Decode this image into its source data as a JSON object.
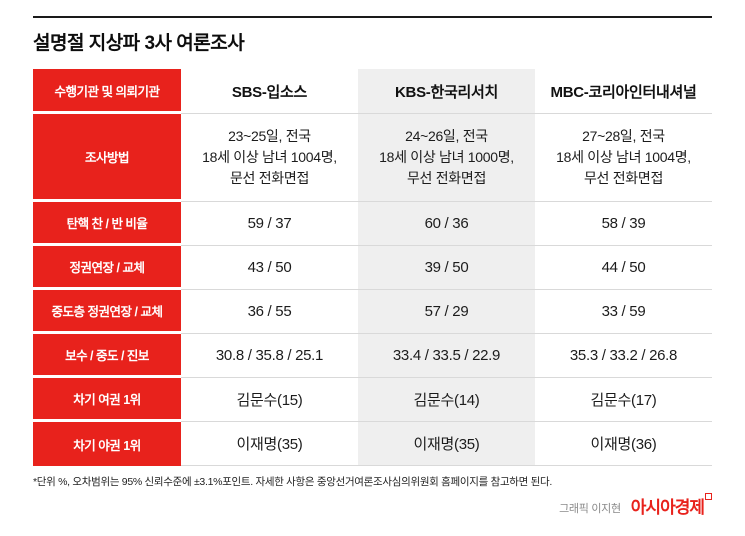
{
  "title": "설명절 지상파 3사 여론조사",
  "chart_data": {
    "type": "table",
    "corner_label": "수행기관 및 의뢰기관",
    "columns": [
      "SBS-입소스",
      "KBS-한국리서치",
      "MBC-코리아인터내셔널"
    ],
    "rows": [
      {
        "label": "조사방법",
        "values": [
          "23~25일, 전국\n18세 이상 남녀 1004명,\n문선 전화면접",
          "24~26일, 전국\n18세 이상 남녀 1000명,\n무선 전화면접",
          "27~28일, 전국\n18세 이상 남녀 1004명,\n무선 전화면접"
        ]
      },
      {
        "label": "탄핵 찬 / 반 비율",
        "values": [
          "59  /  37",
          "60  /  36",
          "58  /  39"
        ]
      },
      {
        "label": "정권연장 / 교체",
        "values": [
          "43  /  50",
          "39  /  50",
          "44  /  50"
        ]
      },
      {
        "label": "중도층 정권연장 / 교체",
        "values": [
          "36  /  55",
          "57  /  29",
          "33  /  59"
        ]
      },
      {
        "label": "보수 / 중도 / 진보",
        "values": [
          "30.8  /  35.8  /  25.1",
          "33.4  /  33.5  /  22.9",
          "35.3  /  33.2  /  26.8"
        ]
      },
      {
        "label": "차기 여권 1위",
        "values": [
          "김문수(15)",
          "김문수(14)",
          "김문수(17)"
        ]
      },
      {
        "label": "차기 야권 1위",
        "values": [
          "이재명(35)",
          "이재명(35)",
          "이재명(36)"
        ]
      }
    ]
  },
  "footnote": "*단위 %, 오차범위는 95% 신뢰수준에 ±3.1%포인트. 자세한 사항은 중앙선거여론조사심의위원회 홈페이지를 참고하면 된다.",
  "credit": "그래픽 이지현",
  "logo_text": "아시아경제",
  "colors": {
    "accent_red": "#e8221c",
    "kbs_column_bg": "#efefef"
  }
}
